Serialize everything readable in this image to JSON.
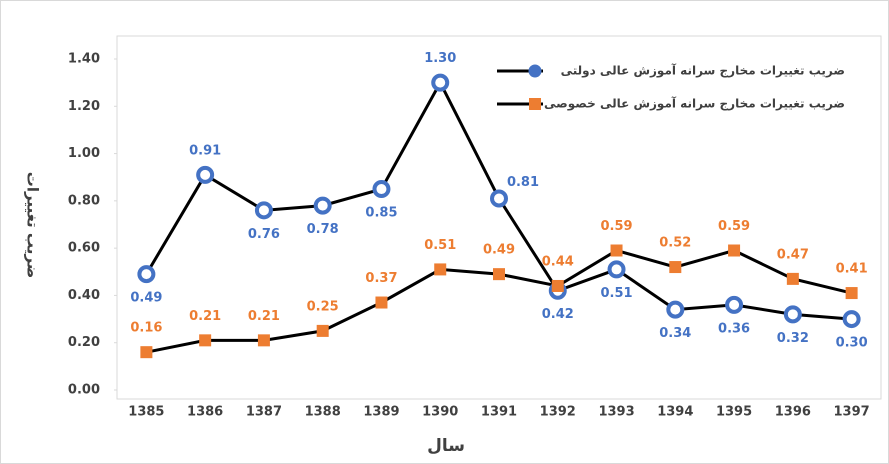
{
  "chart_data": {
    "type": "line",
    "xlabel": "سال",
    "ylabel": "ضریب تغییرات",
    "categories": [
      "1385",
      "1386",
      "1387",
      "1388",
      "1389",
      "1390",
      "1391",
      "1392",
      "1393",
      "1394",
      "1395",
      "1396",
      "1397"
    ],
    "series": [
      {
        "name": "ضریب تغییرات مخارج سرانه آموزش عالی دولتی",
        "color": "#4472c4",
        "marker": "circle",
        "values": [
          0.49,
          0.91,
          0.76,
          0.78,
          0.85,
          1.3,
          0.81,
          0.42,
          0.51,
          0.34,
          0.36,
          0.32,
          0.3
        ],
        "value_labels": [
          "0.49",
          "0.91",
          "0.76",
          "0.78",
          "0.85",
          "1.30",
          "0.81",
          "0.42",
          "0.51",
          "0.34",
          "0.36",
          "0.32",
          "0.30"
        ]
      },
      {
        "name": "ضریب تغییرات مخارج سرانه آموزش عالی خصوصی",
        "color": "#ed7d31",
        "marker": "square",
        "values": [
          0.16,
          0.21,
          0.21,
          0.25,
          0.37,
          0.51,
          0.49,
          0.44,
          0.59,
          0.52,
          0.59,
          0.47,
          0.41
        ],
        "value_labels": [
          "0.16",
          "0.21",
          "0.21",
          "0.25",
          "0.37",
          "0.51",
          "0.49",
          "0.44",
          "0.59",
          "0.52",
          "0.59",
          "0.47",
          "0.41"
        ]
      }
    ],
    "ylim": [
      0,
      1.4
    ],
    "yticks": [
      {
        "value": 0,
        "label": "0.00"
      },
      {
        "value": 0.2,
        "label": "0.20"
      },
      {
        "value": 0.4,
        "label": "0.40"
      },
      {
        "value": 0.6,
        "label": "0.60"
      },
      {
        "value": 0.8,
        "label": "0.80"
      },
      {
        "value": 1.0,
        "label": "1.00"
      },
      {
        "value": 1.2,
        "label": "1.20"
      },
      {
        "value": 1.4,
        "label": "1.40"
      }
    ]
  }
}
